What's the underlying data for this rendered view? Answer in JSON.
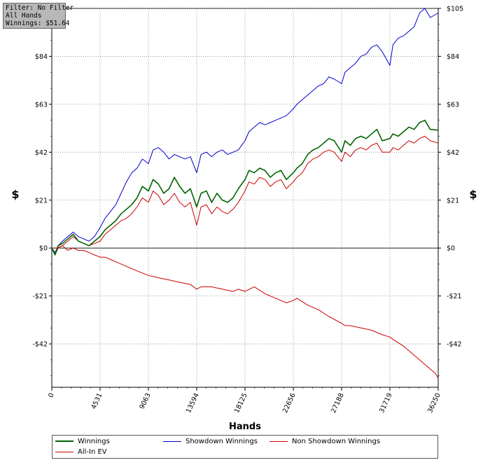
{
  "info_box": {
    "filter": "Filter: No Filter",
    "hands": "All Hands",
    "winnings": "Winnings: $51.64"
  },
  "chart_data": {
    "type": "line",
    "title": "",
    "xlabel": "Hands",
    "ylabel": "$",
    "xlim": [
      0,
      36250
    ],
    "ylim": [
      -61,
      105
    ],
    "x_ticks": [
      0,
      4531,
      9063,
      13594,
      18125,
      22656,
      27188,
      31719,
      36250
    ],
    "x_tick_labels": [
      "0",
      "4531",
      "9063",
      "13594",
      "18125",
      "22656",
      "27188",
      "31719",
      "36250"
    ],
    "y_ticks": [
      105,
      84,
      63,
      42,
      21,
      0,
      -21,
      -42
    ],
    "y_tick_labels": [
      "$105",
      "$84",
      "$63",
      "$42",
      "$21",
      "$0",
      "-$21",
      "-$42"
    ],
    "grid": true,
    "legend_position": "bottom",
    "series": [
      {
        "name": "Winnings",
        "color": "#006400",
        "x": [
          0,
          300,
          600,
          1000,
          1500,
          2000,
          2500,
          3000,
          3500,
          4000,
          4531,
          5000,
          5500,
          6000,
          6500,
          7000,
          7500,
          8000,
          8500,
          9063,
          9500,
          10000,
          10500,
          11000,
          11500,
          12000,
          12500,
          13000,
          13594,
          14000,
          14500,
          15000,
          15500,
          16000,
          16500,
          17000,
          17500,
          18125,
          18500,
          19000,
          19500,
          20000,
          20500,
          21000,
          21500,
          22000,
          22656,
          23000,
          23500,
          24000,
          24500,
          25000,
          25500,
          26000,
          26500,
          27188,
          27500,
          28000,
          28500,
          29000,
          29500,
          30000,
          30500,
          31000,
          31719,
          32000,
          32500,
          33000,
          33500,
          34000,
          34500,
          35000,
          35500,
          36250
        ],
        "y": [
          0,
          -3,
          1,
          2,
          4,
          6,
          3,
          2,
          1,
          3,
          5,
          8,
          10,
          12,
          15,
          17,
          19,
          22,
          27,
          25,
          30,
          28,
          24,
          26,
          31,
          27,
          24,
          26,
          18,
          24,
          25,
          20,
          24,
          21,
          20,
          22,
          26,
          30,
          34,
          33,
          35,
          34,
          31,
          33,
          34,
          30,
          33,
          35,
          37,
          41,
          43,
          44,
          46,
          48,
          47,
          42,
          47,
          45,
          48,
          49,
          48,
          50,
          52,
          47,
          48,
          50,
          49,
          51,
          53,
          52,
          55,
          56,
          52,
          51.64
        ]
      },
      {
        "name": "Showdown Winnings",
        "color": "#0000cc",
        "x": [
          0,
          300,
          600,
          1000,
          1500,
          2000,
          2500,
          3000,
          3500,
          4000,
          4531,
          5000,
          5500,
          6000,
          6500,
          7000,
          7500,
          8000,
          8500,
          9063,
          9500,
          10000,
          10500,
          11000,
          11500,
          12000,
          12500,
          13000,
          13594,
          14000,
          14500,
          15000,
          15500,
          16000,
          16500,
          17000,
          17500,
          18125,
          18500,
          19000,
          19500,
          20000,
          20500,
          21000,
          21500,
          22000,
          22656,
          23000,
          23500,
          24000,
          24500,
          25000,
          25500,
          26000,
          26500,
          27188,
          27500,
          28000,
          28500,
          29000,
          29500,
          30000,
          30500,
          31000,
          31719,
          32000,
          32500,
          33000,
          33500,
          34000,
          34500,
          35000,
          35500,
          36250
        ],
        "y": [
          0,
          -2,
          1,
          3,
          5,
          7,
          5,
          4,
          3,
          5,
          9,
          13,
          16,
          19,
          24,
          29,
          33,
          35,
          39,
          37,
          43,
          44,
          42,
          39,
          41,
          40,
          39,
          40,
          33,
          41,
          42,
          40,
          42,
          43,
          41,
          42,
          43,
          47,
          51,
          53,
          55,
          54,
          55,
          56,
          57,
          58,
          61,
          63,
          65,
          67,
          69,
          71,
          72,
          75,
          74,
          72,
          77,
          79,
          81,
          84,
          85,
          88,
          89,
          86,
          80,
          89,
          92,
          93,
          95,
          97,
          103,
          105,
          101,
          103
        ]
      },
      {
        "name": "Non Showdown Winnings",
        "color": "#cc0000",
        "x": [
          0,
          300,
          600,
          1000,
          1500,
          2000,
          2500,
          3000,
          3500,
          4000,
          4531,
          5000,
          5500,
          6000,
          6500,
          7000,
          7500,
          8000,
          8500,
          9063,
          9500,
          10000,
          10500,
          11000,
          11500,
          12000,
          12500,
          13000,
          13594,
          14000,
          14500,
          15000,
          15500,
          16000,
          16500,
          17000,
          17500,
          18125,
          18500,
          19000,
          19500,
          20000,
          20500,
          21000,
          21500,
          22000,
          22656,
          23000,
          23500,
          24000,
          24500,
          25000,
          25500,
          26000,
          26500,
          27188,
          27500,
          28000,
          28500,
          29000,
          29500,
          30000,
          30500,
          31000,
          31719,
          32000,
          32500,
          33000,
          33500,
          34000,
          34500,
          35000,
          35500,
          36250
        ],
        "y": [
          0,
          -3,
          0,
          1,
          3,
          5,
          3,
          2,
          1,
          2,
          3,
          6,
          8,
          10,
          12,
          13,
          15,
          18,
          22,
          20,
          25,
          23,
          19,
          21,
          24,
          20,
          18,
          20,
          10,
          18,
          19,
          15,
          18,
          16,
          15,
          17,
          20,
          25,
          29,
          28,
          31,
          30,
          27,
          29,
          30,
          26,
          29,
          31,
          33,
          37,
          39,
          40,
          42,
          43,
          42,
          38,
          42,
          40,
          43,
          44,
          43,
          45,
          46,
          42,
          42,
          44,
          43,
          45,
          47,
          46,
          48,
          49,
          47,
          46
        ]
      },
      {
        "name": "All-In EV",
        "color": "#cc0000",
        "x": [
          0,
          500,
          1000,
          1500,
          2000,
          2500,
          3000,
          3500,
          4000,
          4531,
          5000,
          5500,
          6000,
          7000,
          8000,
          9063,
          10000,
          11000,
          12000,
          13000,
          13594,
          14000,
          15000,
          16000,
          17000,
          17500,
          18125,
          19000,
          20000,
          21000,
          22000,
          22656,
          23000,
          24000,
          25000,
          26000,
          27188,
          27500,
          28000,
          29000,
          30000,
          31000,
          31719,
          32000,
          33000,
          34000,
          34500,
          35000,
          35500,
          36000,
          36250
        ],
        "y": [
          0,
          0,
          1,
          -1,
          0,
          -1,
          -1,
          -2,
          -3,
          -4,
          -4,
          -5,
          -6,
          -8,
          -10,
          -12,
          -13,
          -14,
          -15,
          -16,
          -18,
          -17,
          -17,
          -18,
          -19,
          -18,
          -19,
          -17,
          -20,
          -22,
          -24,
          -23,
          -22,
          -25,
          -27,
          -30,
          -33,
          -34,
          -34,
          -35,
          -36,
          -38,
          -39,
          -40,
          -43,
          -47,
          -49,
          -51,
          -53,
          -55,
          -57
        ]
      }
    ]
  }
}
